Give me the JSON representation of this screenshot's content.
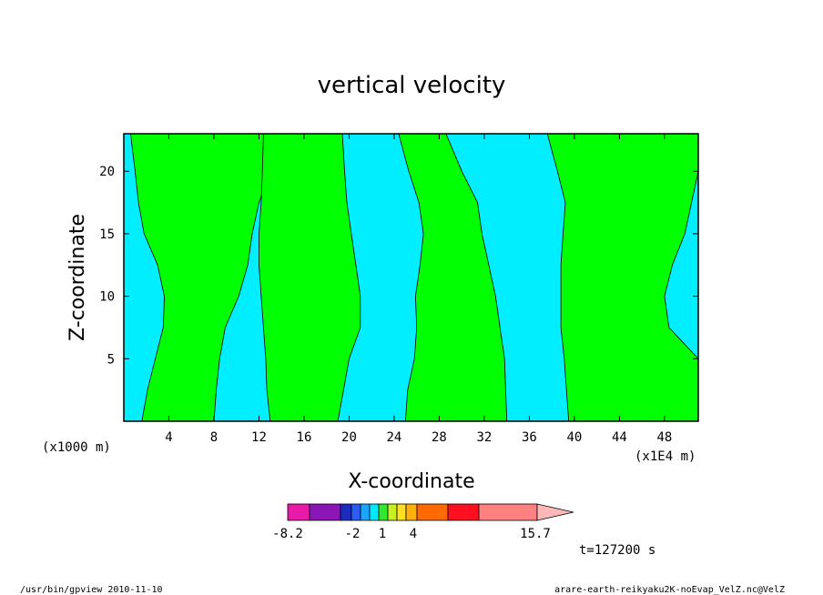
{
  "chart_data": {
    "type": "heatmap",
    "title": "vertical velocity",
    "xlabel": "X-coordinate",
    "ylabel": "Z-coordinate",
    "x_unit_left": "(x1000 m)",
    "x_unit_right": "(x1E4 m)",
    "xlim": [
      0,
      51
    ],
    "ylim": [
      0,
      23
    ],
    "x_ticks": [
      4,
      8,
      12,
      16,
      20,
      24,
      28,
      32,
      36,
      40,
      44,
      48
    ],
    "y_ticks": [
      5,
      10,
      15,
      20
    ],
    "colors": {
      "positive": "#00ff00",
      "negative": "#00eeff"
    },
    "upward_regions": [
      {
        "x_left": [
          1.6,
          2.1,
          2.8,
          3.5,
          3.6,
          3.0,
          1.8,
          1.3,
          1.0,
          0.6
        ],
        "x_right": [
          8.0,
          8.2,
          8.5,
          9.0,
          10.2,
          11.0,
          11.4,
          12.0,
          13.0,
          13.4
        ]
      },
      {
        "x_left": [
          13.0,
          12.7,
          12.6,
          12.4,
          12.2,
          12.0,
          12.0,
          12.2,
          12.3,
          12.4
        ],
        "x_right": [
          19.0,
          19.5,
          20.0,
          21.0,
          21.0,
          20.6,
          20.2,
          19.8,
          19.6,
          19.4
        ]
      },
      {
        "x_left": [
          25.0,
          25.2,
          25.8,
          26.0,
          25.9,
          26.3,
          26.6,
          26.2,
          25.3,
          24.4
        ],
        "x_right": [
          34.0,
          33.9,
          33.8,
          33.4,
          33.0,
          32.4,
          31.8,
          31.4,
          30.0,
          28.6
        ]
      },
      {
        "x_left": [
          39.5,
          39.3,
          39.1,
          38.8,
          38.8,
          38.8,
          39.0,
          39.2,
          38.5,
          37.6
        ],
        "x_right": [
          51.0,
          51.0,
          51.0,
          48.4,
          48.0,
          48.7,
          49.8,
          50.4,
          51.0,
          51.0
        ]
      }
    ],
    "row_levels": [
      0,
      2.5,
      5,
      7.5,
      10,
      12.5,
      15,
      17.5,
      20,
      23
    ],
    "colorbar": {
      "colors": [
        "#e81aa8",
        "#8a16b6",
        "#1a2bbf",
        "#2b5df5",
        "#1aa6ff",
        "#00e8ff",
        "#30e830",
        "#c8f020",
        "#ffe020",
        "#ffb010",
        "#ff6a00",
        "#ff1020",
        "#ff8080",
        "#ffb8b8"
      ],
      "labels": [
        "-8.2",
        "-2",
        "1",
        "4",
        "15.7"
      ]
    },
    "time_label": "t=127200 s"
  },
  "footer": {
    "left": "/usr/bin/gpview   2010-11-10",
    "right": "arare-earth-reikyaku2K-noEvap_VelZ.nc@VelZ"
  }
}
